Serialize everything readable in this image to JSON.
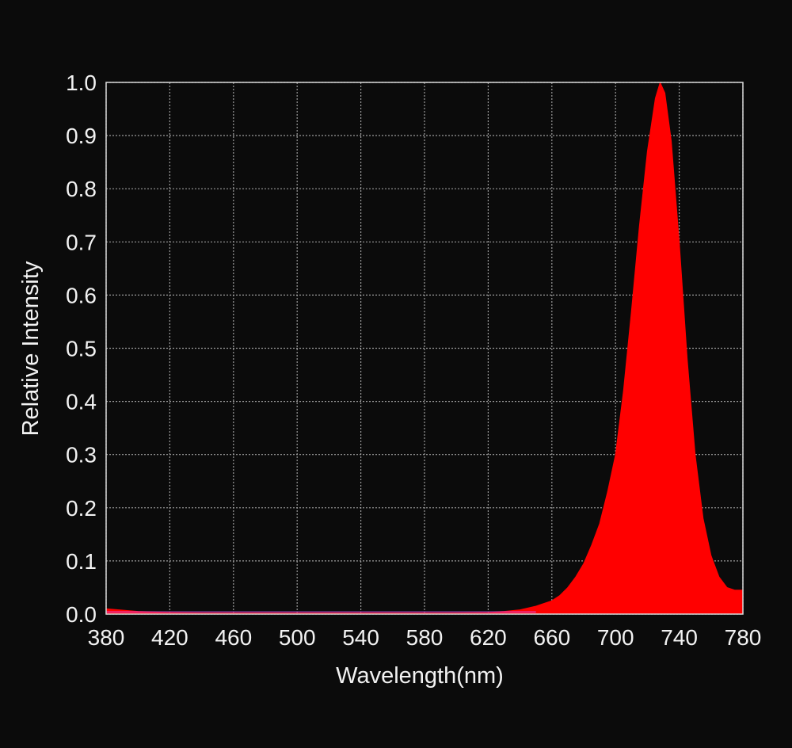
{
  "chart_data": {
    "type": "area",
    "title": "",
    "xlabel": "Wavelength(nm)",
    "ylabel": "Relative Intensity",
    "xlim": [
      380,
      780
    ],
    "ylim": [
      0,
      1.0
    ],
    "xticks": [
      380,
      420,
      460,
      500,
      540,
      580,
      620,
      660,
      700,
      740,
      780
    ],
    "xtick_labels": [
      "380",
      "420",
      "460",
      "500",
      "540",
      "580",
      "620",
      "660",
      "700",
      "740",
      "780"
    ],
    "yticks": [
      0,
      0.1,
      0.2,
      0.3,
      0.4,
      0.5,
      0.6,
      0.7,
      0.8,
      0.9,
      1.0
    ],
    "ytick_labels": [
      "0.0",
      "0.1",
      "0.2",
      "0.3",
      "0.4",
      "0.5",
      "0.6",
      "0.7",
      "0.8",
      "0.9",
      "1.0"
    ],
    "grid": true,
    "legend": "none",
    "colors": {
      "background": "#0b0b0b",
      "axis": "#d9d9d9",
      "grid": "#9b9b9b",
      "fill": "#ff0000",
      "text": "#f2f2f2"
    },
    "series": [
      {
        "x": [
          380,
          400,
          420,
          440,
          460,
          480,
          500,
          520,
          540,
          560,
          580,
          600,
          620,
          630,
          640,
          650,
          660,
          665,
          670,
          675,
          680,
          685,
          690,
          695,
          700,
          705,
          710,
          715,
          720,
          725,
          728,
          731,
          735,
          740,
          745,
          750,
          755,
          760,
          765,
          770,
          775,
          780
        ],
        "y": [
          0.01,
          0.005,
          0.003,
          0.002,
          0.002,
          0.002,
          0.002,
          0.002,
          0.002,
          0.002,
          0.002,
          0.002,
          0.003,
          0.005,
          0.008,
          0.015,
          0.025,
          0.035,
          0.05,
          0.07,
          0.095,
          0.13,
          0.17,
          0.23,
          0.3,
          0.42,
          0.57,
          0.73,
          0.87,
          0.97,
          1.0,
          0.98,
          0.89,
          0.7,
          0.48,
          0.3,
          0.18,
          0.11,
          0.07,
          0.05,
          0.045,
          0.045
        ]
      }
    ]
  }
}
